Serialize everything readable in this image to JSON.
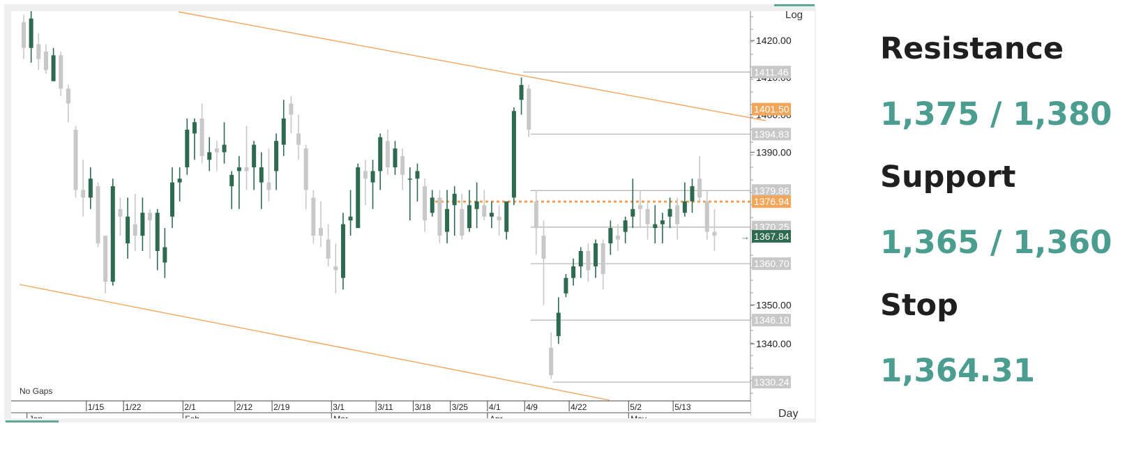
{
  "chart_data": {
    "type": "candlestick",
    "scale_label": "Log",
    "period_label": "Day",
    "gaps_label": "No Gaps",
    "grid": false,
    "ylim": [
      1326,
      1428
    ],
    "y_ticks": [
      "1420.00",
      "1410.00",
      "1400.00",
      "1390.00",
      "1350.00",
      "1340.00"
    ],
    "x_ticks": [
      {
        "label": "1/15",
        "i": 9
      },
      {
        "label": "1/22",
        "i": 14
      },
      {
        "label": "2/1",
        "i": 22
      },
      {
        "label": "2/12",
        "i": 29
      },
      {
        "label": "2/19",
        "i": 34
      },
      {
        "label": "3/1",
        "i": 42
      },
      {
        "label": "3/11",
        "i": 48
      },
      {
        "label": "3/18",
        "i": 53
      },
      {
        "label": "3/25",
        "i": 58
      },
      {
        "label": "4/1",
        "i": 63
      },
      {
        "label": "4/9",
        "i": 68
      },
      {
        "label": "4/22",
        "i": 74
      },
      {
        "label": "5/2",
        "i": 82
      },
      {
        "label": "5/13",
        "i": 88
      }
    ],
    "month_ticks": [
      {
        "label": "Jan",
        "i": 1
      },
      {
        "label": "Feb",
        "i": 22
      },
      {
        "label": "Mar",
        "i": 42
      },
      {
        "label": "Apr",
        "i": 63
      },
      {
        "label": "May",
        "i": 82
      }
    ],
    "candles": [
      [
        1425,
        1427,
        1415,
        1418
      ],
      [
        1418,
        1428,
        1414,
        1426
      ],
      [
        1419,
        1422,
        1412,
        1415
      ],
      [
        1417,
        1419,
        1411,
        1412
      ],
      [
        1409,
        1418,
        1409,
        1416
      ],
      [
        1416,
        1417,
        1405,
        1407
      ],
      [
        1407,
        1408,
        1398,
        1403
      ],
      [
        1396,
        1397,
        1378,
        1380
      ],
      [
        1380,
        1388,
        1373,
        1378
      ],
      [
        1378,
        1386,
        1375,
        1383
      ],
      [
        1381,
        1382,
        1365,
        1366
      ],
      [
        1368,
        1368,
        1353,
        1356
      ],
      [
        1356,
        1383,
        1355,
        1381
      ],
      [
        1375,
        1378,
        1368,
        1373
      ],
      [
        1366,
        1378,
        1362,
        1373
      ],
      [
        1371,
        1379,
        1364,
        1368
      ],
      [
        1368,
        1378,
        1364,
        1374
      ],
      [
        1374,
        1375,
        1362,
        1372
      ],
      [
        1364,
        1375,
        1359,
        1374
      ],
      [
        1361,
        1370,
        1357,
        1365
      ],
      [
        1373,
        1386,
        1370,
        1382
      ],
      [
        1382,
        1386,
        1377,
        1383
      ],
      [
        1386,
        1399,
        1384,
        1396
      ],
      [
        1395,
        1399,
        1388,
        1398
      ],
      [
        1399,
        1403,
        1387,
        1389
      ],
      [
        1388,
        1394,
        1385,
        1390
      ],
      [
        1391,
        1393,
        1385,
        1390
      ],
      [
        1390,
        1398,
        1387,
        1392
      ],
      [
        1381,
        1385,
        1375,
        1384
      ],
      [
        1385,
        1389,
        1375,
        1386
      ],
      [
        1386,
        1397,
        1380,
        1385
      ],
      [
        1386,
        1393,
        1380,
        1392
      ],
      [
        1382,
        1390,
        1375,
        1386
      ],
      [
        1382,
        1391,
        1377,
        1380
      ],
      [
        1385,
        1395,
        1380,
        1393
      ],
      [
        1392,
        1404,
        1389,
        1399
      ],
      [
        1403,
        1405,
        1395,
        1400
      ],
      [
        1395,
        1400,
        1388,
        1392
      ],
      [
        1391,
        1392,
        1375,
        1380
      ],
      [
        1378,
        1380,
        1366,
        1368
      ],
      [
        1370,
        1377,
        1365,
        1368
      ],
      [
        1367,
        1371,
        1360,
        1362
      ],
      [
        1360,
        1366,
        1353,
        1359
      ],
      [
        1357,
        1374,
        1354,
        1371
      ],
      [
        1372,
        1380,
        1368,
        1373
      ],
      [
        1370,
        1387,
        1370,
        1386
      ],
      [
        1385,
        1388,
        1376,
        1383
      ],
      [
        1382,
        1388,
        1375,
        1385
      ],
      [
        1385,
        1395,
        1380,
        1394
      ],
      [
        1393,
        1396,
        1384,
        1386
      ],
      [
        1386,
        1393,
        1384,
        1391
      ],
      [
        1389,
        1391,
        1380,
        1384
      ],
      [
        1383,
        1386,
        1372,
        1383
      ],
      [
        1383,
        1387,
        1377,
        1385
      ],
      [
        1381,
        1383,
        1369,
        1372
      ],
      [
        1374,
        1380,
        1373,
        1378
      ],
      [
        1378,
        1380,
        1366,
        1368
      ],
      [
        1369,
        1380,
        1366,
        1375
      ],
      [
        1376,
        1381,
        1368,
        1379
      ],
      [
        1375,
        1379,
        1367,
        1368
      ],
      [
        1370,
        1380,
        1369,
        1376
      ],
      [
        1375,
        1382,
        1370,
        1377
      ],
      [
        1376,
        1380,
        1372,
        1373
      ],
      [
        1373,
        1377,
        1370,
        1374
      ],
      [
        1373,
        1376,
        1368,
        1372
      ],
      [
        1369,
        1377,
        1367,
        1377
      ],
      [
        1378,
        1402,
        1376,
        1401
      ],
      [
        1404,
        1410,
        1400,
        1408
      ],
      [
        1407,
        1408,
        1394,
        1396
      ],
      [
        1377,
        1380,
        1363,
        1370
      ],
      [
        1368,
        1372,
        1350,
        1362
      ],
      [
        1339,
        1343,
        1331,
        1332
      ],
      [
        1342,
        1352,
        1340,
        1348
      ],
      [
        1353,
        1358,
        1352,
        1357
      ],
      [
        1357,
        1362,
        1355,
        1360
      ],
      [
        1360,
        1365,
        1357,
        1364
      ],
      [
        1364,
        1366,
        1356,
        1359
      ],
      [
        1360,
        1367,
        1357,
        1366
      ],
      [
        1366,
        1367,
        1354,
        1358
      ],
      [
        1366,
        1372,
        1363,
        1370
      ],
      [
        1368,
        1371,
        1364,
        1367
      ],
      [
        1369,
        1373,
        1366,
        1372
      ],
      [
        1373,
        1383,
        1370,
        1375
      ],
      [
        1376,
        1380,
        1370,
        1375
      ],
      [
        1375,
        1377,
        1367,
        1371
      ],
      [
        1370,
        1376,
        1366,
        1371
      ],
      [
        1371,
        1374,
        1366,
        1372
      ],
      [
        1373,
        1378,
        1370,
        1375
      ],
      [
        1376,
        1378,
        1367,
        1371
      ],
      [
        1374,
        1382,
        1373,
        1377
      ],
      [
        1377,
        1383,
        1374,
        1381
      ],
      [
        1383,
        1389,
        1377,
        1378
      ],
      [
        1377,
        1380,
        1367,
        1369
      ],
      [
        1369,
        1375,
        1364,
        1368
      ]
    ],
    "levels": [
      {
        "label": "1411.46",
        "value": 1411.46,
        "from": 68
      },
      {
        "label": "1394.83",
        "value": 1394.83,
        "from": 69
      },
      {
        "label": "1379.86",
        "value": 1379.86,
        "from": 69
      },
      {
        "label": "1370.25",
        "value": 1370.25,
        "from": 69
      },
      {
        "label": "1360.70",
        "value": 1360.7,
        "from": 69
      },
      {
        "label": "1346.10",
        "value": 1346.1,
        "from": 69
      },
      {
        "label": "1330.24",
        "value": 1330.24,
        "from": 72
      }
    ],
    "orange_labels": [
      {
        "label": "1401.50",
        "value": 1401.5
      },
      {
        "label": "1376.94",
        "value": 1376.94
      }
    ],
    "last_price": {
      "label": "1367.84",
      "value": 1367.84
    },
    "dotted_level": 1376.94,
    "colors": {
      "up": "#2d6a4f",
      "down": "#c8c8c8",
      "trend": "#f2a65a",
      "level": "#b0b0b0",
      "orange_tag": "#f2a65a",
      "last_tag": "#2d6a4f"
    }
  },
  "levels_panel": {
    "resistance_label": "Resistance",
    "resistance_value": "1,375 / 1,380",
    "support_label": "Support",
    "support_value": "1,365 / 1,360",
    "stop_label": "Stop",
    "stop_value": "1,364.31"
  }
}
